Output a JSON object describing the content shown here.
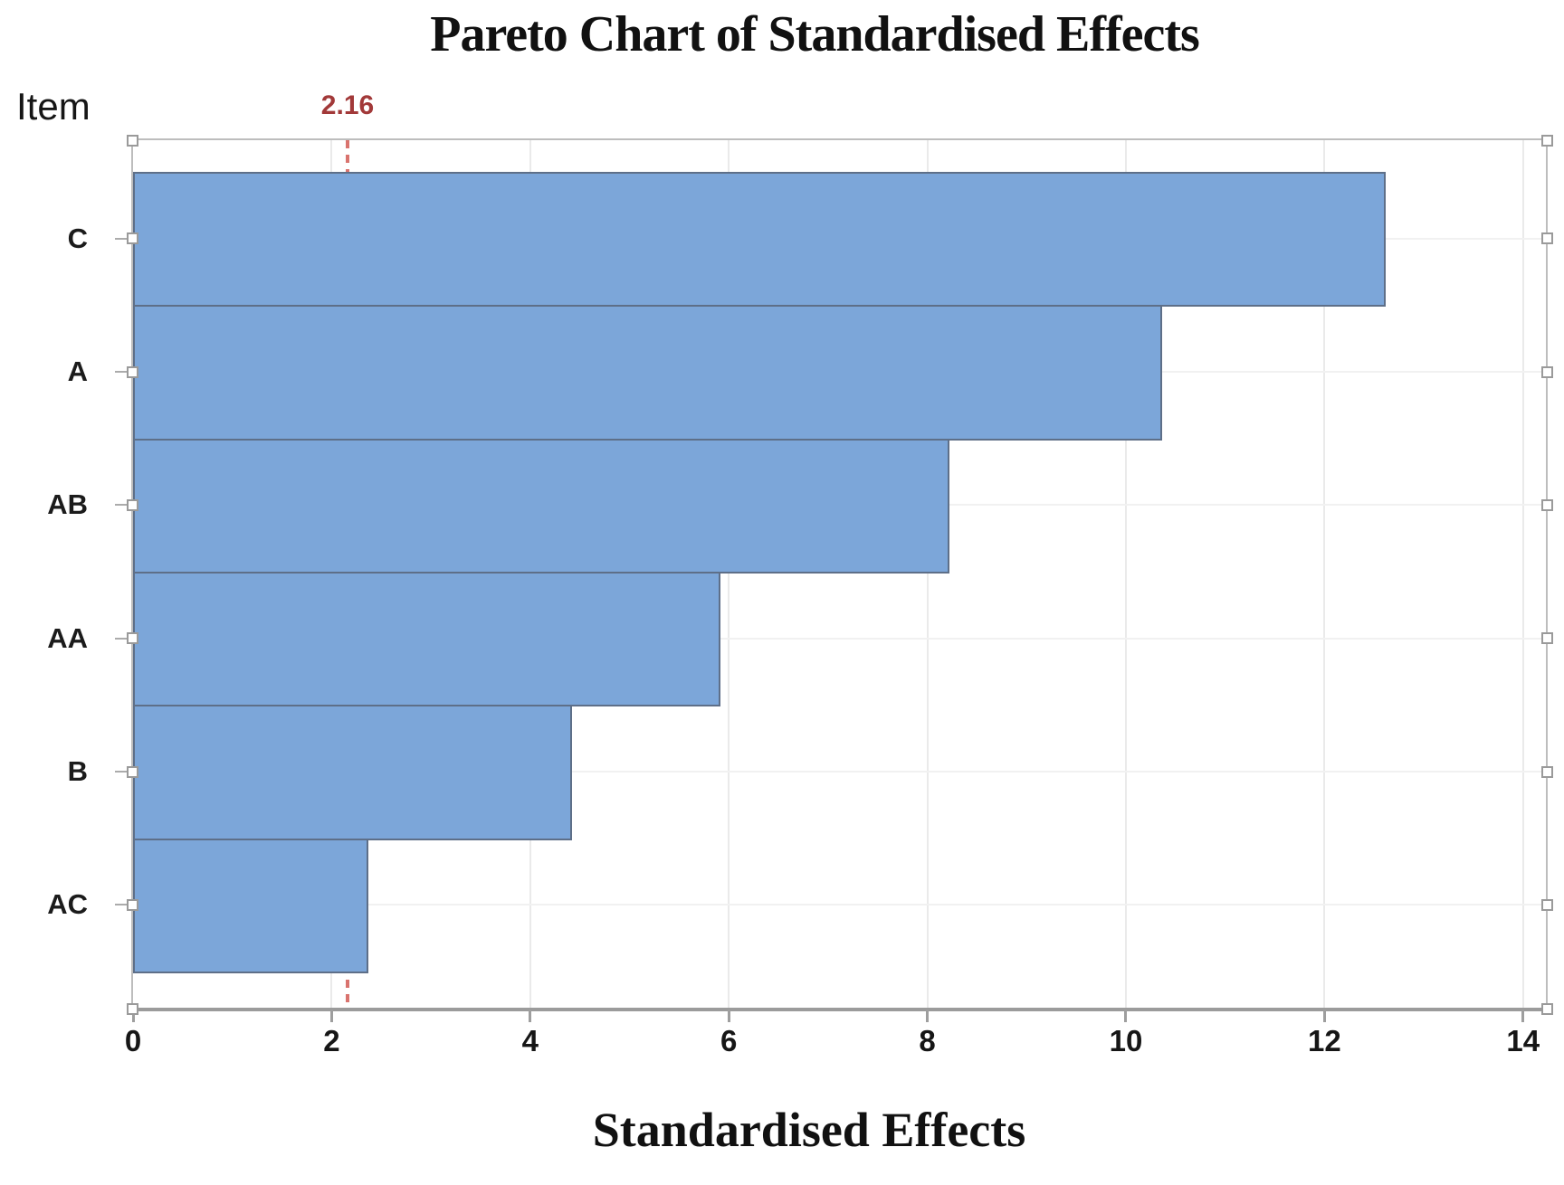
{
  "chart_data": {
    "type": "bar",
    "orientation": "horizontal",
    "title": "Pareto Chart of Standardised Effects",
    "xlabel": "Standardised Effects",
    "ylabel": "Item",
    "categories": [
      "C",
      "A",
      "AB",
      "AA",
      "B",
      "AC"
    ],
    "values": [
      12.6,
      10.35,
      8.2,
      5.9,
      4.4,
      2.35
    ],
    "xlim": [
      0,
      14.23
    ],
    "x_ticks": [
      0,
      2,
      4,
      6,
      8,
      10,
      12,
      14
    ],
    "x_tick_labels": [
      "0",
      "2",
      "4",
      "6",
      "8",
      "10",
      "12",
      "14"
    ],
    "reference_line": {
      "value": 2.16,
      "label": "2.16"
    },
    "grid": true,
    "legend": false,
    "colors": {
      "bar_fill": "#7ca6d9",
      "bar_border": "#5e6f88",
      "reference_line": "#d9736e",
      "reference_label": "#a23939",
      "plot_border": "#bdbdbd",
      "axis_line": "#9b9b9b",
      "gridline": "#eaeaea",
      "text": "#161616"
    }
  }
}
